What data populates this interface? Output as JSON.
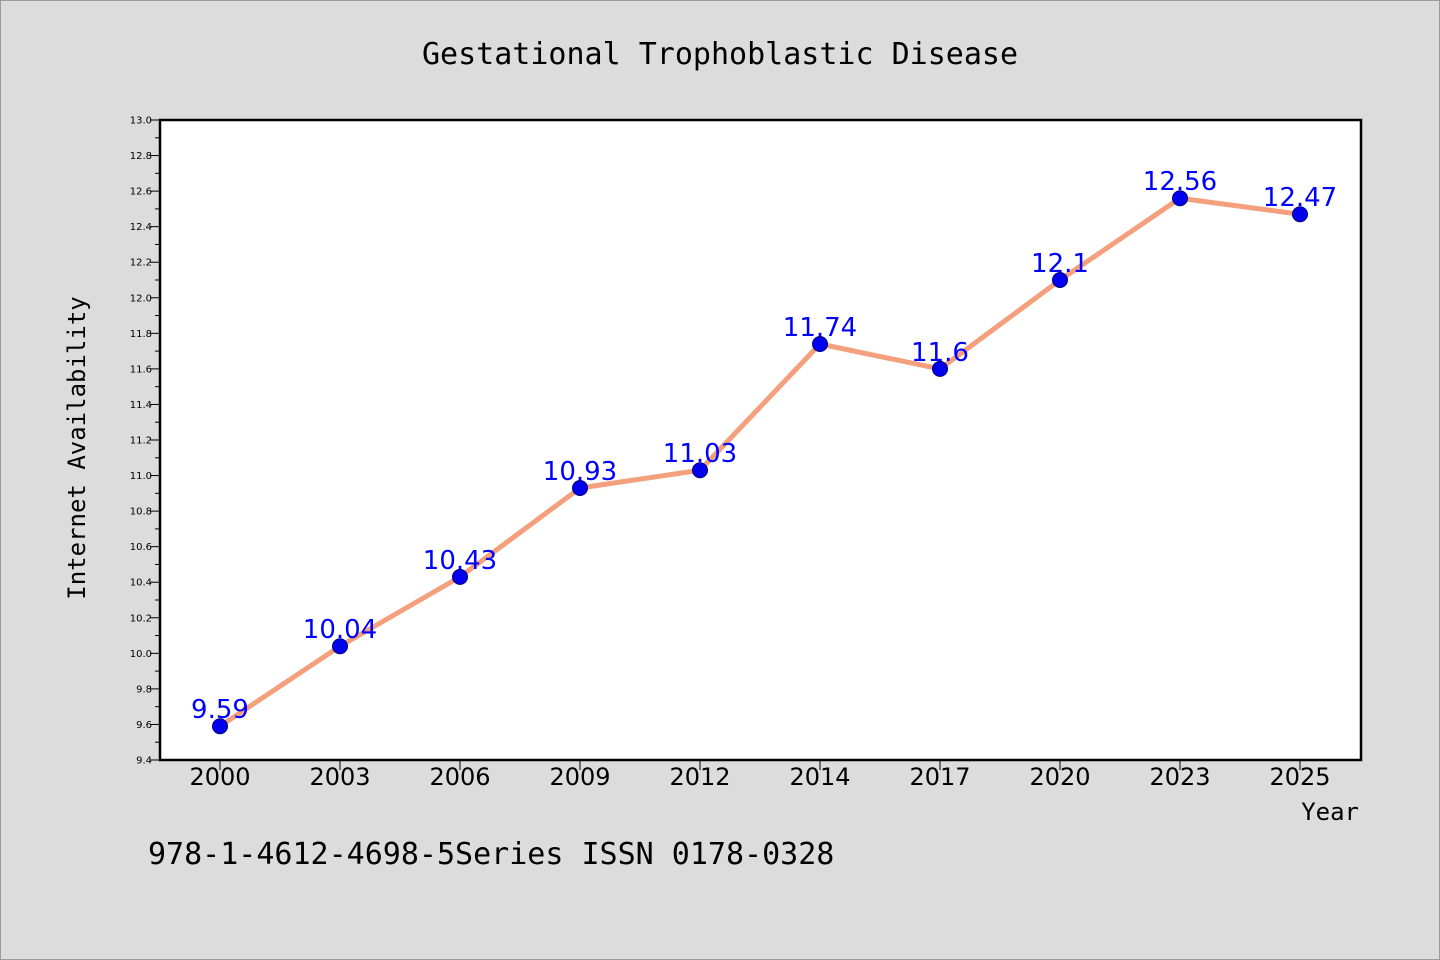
{
  "chart_data": {
    "type": "line",
    "title": "Gestational Trophoblastic Disease",
    "xlabel": "Year",
    "ylabel": "Internet Availability",
    "categories": [
      "2000",
      "2003",
      "2006",
      "2009",
      "2012",
      "2014",
      "2017",
      "2020",
      "2023",
      "2025"
    ],
    "series": [
      {
        "values": [
          9.59,
          10.04,
          10.43,
          10.93,
          11.03,
          11.74,
          11.6,
          12.1,
          12.56,
          12.47
        ]
      }
    ],
    "data_labels": [
      "9.59",
      "10.04",
      "10.43",
      "10.93",
      "11.03",
      "11.74",
      "11.6",
      "12.1",
      "12.56",
      "12.47"
    ],
    "ylim": [
      9.4,
      13.0
    ],
    "yticks": [
      "9.4",
      "9.6",
      "9.8",
      "10.0",
      "10.2",
      "10.4",
      "10.6",
      "10.8",
      "11.0",
      "11.2",
      "11.4",
      "11.6",
      "11.8",
      "12.0",
      "12.2",
      "12.4",
      "12.6",
      "12.8",
      "13.0"
    ],
    "grid": false,
    "legend": "none",
    "colors": {
      "line": "#f4a07c",
      "marker": "#0000ee",
      "marker_edge": "#000080",
      "label": "#0000ff",
      "background": "#dcdcdc",
      "plot_background": "#ffffff"
    }
  },
  "footer": "978-1-4612-4698-5Series ISSN 0178-0328"
}
